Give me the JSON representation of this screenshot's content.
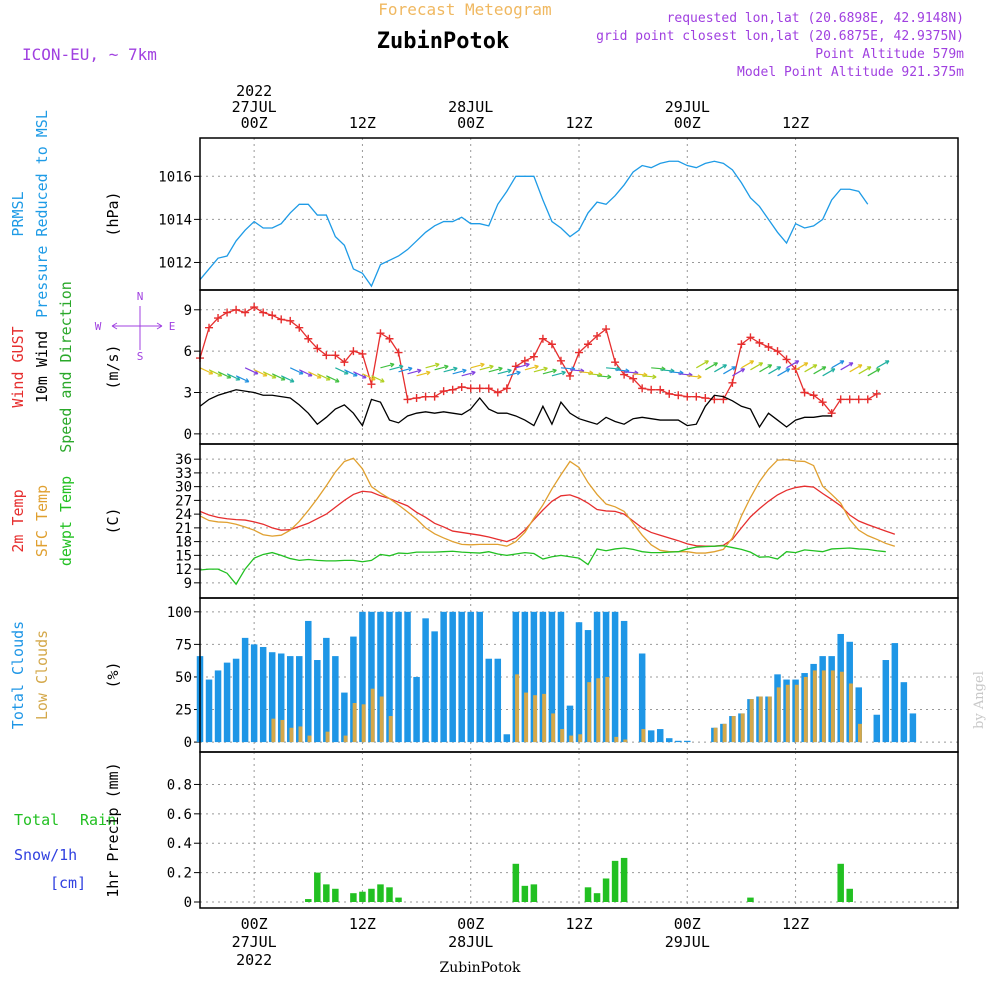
{
  "header": {
    "model": "ICON-EU, ~ 7km",
    "subtitle": "Forecast Meteogram",
    "location": "ZubinPotok",
    "requested": "requested lon,lat (20.6898E, 42.9148N)",
    "closest": "grid point closest lon,lat (20.6875E, 42.9375N)",
    "point_alt": "Point Altitude 579m",
    "model_alt": "Model Point Altitude 921.375m"
  },
  "footer": {
    "location": "ZubinPotok",
    "credit": "by Angel"
  },
  "colors": {
    "pressure": "#1e9be6",
    "gust": "#e62e2e",
    "wind": "#000000",
    "direction": "#2aa82a",
    "temp": "#e62e2e",
    "sfc": "#e0a030",
    "dewpt": "#22c022",
    "total_clouds": "#1e96e6",
    "low_clouds": "#d4a84a",
    "rain": "#22c022",
    "snow": "#3040e0",
    "purple": "#a040e0",
    "orange": "#f0b860"
  },
  "time_axis": {
    "top": [
      {
        "h": 0,
        "lines": [
          "2022",
          "27JUL",
          "00Z"
        ]
      },
      {
        "h": 12,
        "lines": [
          "12Z"
        ]
      },
      {
        "h": 24,
        "lines": [
          "28JUL",
          "00Z"
        ]
      },
      {
        "h": 36,
        "lines": [
          "12Z"
        ]
      },
      {
        "h": 48,
        "lines": [
          "29JUL",
          "00Z"
        ]
      },
      {
        "h": 60,
        "lines": [
          "12Z"
        ]
      }
    ],
    "bottom": [
      {
        "h": 0,
        "lines": [
          "00Z",
          "27JUL",
          "2022"
        ]
      },
      {
        "h": 12,
        "lines": [
          "12Z"
        ]
      },
      {
        "h": 24,
        "lines": [
          "00Z",
          "28JUL"
        ]
      },
      {
        "h": 36,
        "lines": [
          "12Z"
        ]
      },
      {
        "h": 48,
        "lines": [
          "00Z",
          "29JUL"
        ]
      },
      {
        "h": 60,
        "lines": [
          "12Z"
        ]
      }
    ]
  },
  "chart_data": [
    {
      "type": "line",
      "title": "",
      "ylabel": "(hPa)",
      "side_labels": [
        {
          "text": "PRMSL",
          "color": "pressure"
        },
        {
          "text": "Pressure Reduced to MSL",
          "color": "pressure"
        }
      ],
      "ylim": [
        1011,
        1017.5
      ],
      "yticks": [
        1012,
        1014,
        1016
      ],
      "x_start_hour": -6,
      "x_step_hours": 1,
      "series": [
        {
          "color": "pressure",
          "values": [
            1011.2,
            1011.7,
            1012.2,
            1012.3,
            1013.0,
            1013.5,
            1013.9,
            1013.6,
            1013.6,
            1013.8,
            1014.3,
            1014.7,
            1014.7,
            1014.2,
            1014.2,
            1013.2,
            1012.8,
            1011.7,
            1011.5,
            1010.9,
            1011.9,
            1012.1,
            1012.3,
            1012.6,
            1013.0,
            1013.4,
            1013.7,
            1013.9,
            1013.9,
            1014.1,
            1013.8,
            1013.8,
            1013.7,
            1014.7,
            1015.3,
            1016.0,
            1016.0,
            1016.0,
            1014.9,
            1013.9,
            1013.6,
            1013.2,
            1013.5,
            1014.3,
            1014.8,
            1014.7,
            1015.1,
            1015.6,
            1016.2,
            1016.5,
            1016.4,
            1016.6,
            1016.7,
            1016.7,
            1016.5,
            1016.4,
            1016.6,
            1016.7,
            1016.6,
            1016.3,
            1015.7,
            1015.0,
            1014.6,
            1014.0,
            1013.4,
            1012.9,
            1013.8,
            1013.6,
            1013.7,
            1014.0,
            1014.9,
            1015.4,
            1015.4,
            1015.3,
            1014.7
          ]
        }
      ]
    },
    {
      "type": "line",
      "title": "",
      "ylabel": "(m/s)",
      "side_labels": [
        {
          "text": "Wind GUST",
          "color": "gust"
        },
        {
          "text": "10m Wind",
          "color": "wind"
        },
        {
          "text": "Speed and Direction",
          "color": "direction"
        }
      ],
      "compass": {
        "n": "N",
        "s": "S",
        "w": "W",
        "e": "E"
      },
      "ylim": [
        -0.3,
        10
      ],
      "yticks": [
        0,
        3,
        6,
        9
      ],
      "x_start_hour": -6,
      "x_step_hours": 1,
      "series": [
        {
          "color": "gust",
          "marker": "plus",
          "values": [
            5.5,
            7.7,
            8.4,
            8.8,
            9.0,
            8.8,
            9.2,
            8.8,
            8.6,
            8.3,
            8.2,
            7.7,
            6.9,
            6.2,
            5.7,
            5.7,
            5.2,
            6.0,
            5.8,
            3.6,
            7.3,
            6.9,
            5.9,
            2.5,
            2.6,
            2.7,
            2.7,
            3.1,
            3.2,
            3.4,
            3.3,
            3.3,
            3.3,
            3.0,
            3.3,
            4.9,
            5.3,
            5.6,
            6.9,
            6.5,
            5.3,
            4.2,
            5.9,
            6.5,
            7.1,
            7.6,
            5.2,
            4.3,
            4.0,
            3.3,
            3.2,
            3.2,
            2.9,
            2.8,
            2.7,
            2.7,
            2.6,
            2.5,
            2.5,
            3.7,
            6.5,
            7.0,
            6.6,
            6.3,
            6.0,
            5.4,
            4.7,
            3.0,
            2.8,
            2.3,
            1.5,
            2.5,
            2.5,
            2.5,
            2.5,
            2.9
          ]
        },
        {
          "color": "wind",
          "values": [
            2.0,
            2.5,
            2.8,
            3.0,
            3.2,
            3.1,
            3.0,
            2.8,
            2.8,
            2.7,
            2.6,
            2.1,
            1.5,
            0.7,
            1.2,
            1.8,
            2.1,
            1.5,
            0.6,
            2.5,
            2.3,
            1.0,
            0.8,
            1.3,
            1.5,
            1.6,
            1.5,
            1.6,
            1.5,
            1.4,
            1.8,
            2.6,
            1.8,
            1.5,
            1.5,
            1.3,
            1.0,
            0.6,
            2.0,
            0.7,
            2.3,
            1.5,
            1.1,
            0.9,
            0.7,
            1.2,
            0.9,
            0.7,
            1.1,
            1.2,
            1.1,
            1.0,
            1.0,
            1.0,
            0.6,
            0.7,
            2.0,
            2.8,
            2.7,
            2.4,
            2.0,
            1.8,
            0.5,
            1.5,
            1.0,
            0.5,
            1.0,
            1.2,
            1.2,
            1.3,
            1.3
          ]
        }
      ],
      "direction_arrows": {
        "note": "10m wind direction arrows, colored by speed",
        "y_value": 4.5
      }
    },
    {
      "type": "line",
      "title": "",
      "ylabel": "(C)",
      "side_labels": [
        {
          "text": "2m Temp",
          "color": "temp"
        },
        {
          "text": "SFC Temp",
          "color": "sfc"
        },
        {
          "text": "dewpt Temp",
          "color": "dewpt"
        }
      ],
      "ylim": [
        7,
        38
      ],
      "yticks": [
        9,
        12,
        15,
        18,
        21,
        24,
        27,
        30,
        33,
        36
      ],
      "x_start_hour": -6,
      "x_step_hours": 1,
      "series": [
        {
          "color": "temp",
          "values": [
            24.6,
            23.8,
            23.3,
            23.0,
            22.8,
            22.7,
            22.3,
            21.8,
            21.0,
            20.5,
            20.6,
            21.3,
            22.0,
            23.0,
            24.0,
            25.5,
            27.0,
            28.3,
            29.0,
            28.8,
            28.0,
            27.4,
            26.6,
            25.8,
            24.4,
            23.3,
            22.0,
            21.2,
            20.3,
            20.0,
            19.7,
            19.4,
            19.0,
            18.5,
            18.0,
            18.8,
            20.5,
            22.8,
            24.9,
            26.8,
            28.0,
            28.2,
            27.5,
            26.4,
            25.0,
            24.7,
            24.6,
            24.0,
            22.5,
            21.0,
            20.0,
            19.4,
            18.8,
            18.2,
            17.5,
            17.1,
            17.0,
            17.0,
            17.2,
            18.5,
            21.0,
            23.4,
            25.2,
            26.8,
            28.2,
            29.2,
            29.8,
            30.1,
            29.9,
            28.5,
            27.2,
            25.8,
            23.8,
            22.5,
            21.7,
            21.0,
            20.3,
            19.6
          ]
        },
        {
          "color": "sfc",
          "values": [
            23.6,
            22.6,
            22.3,
            22.2,
            21.8,
            21.2,
            20.5,
            19.5,
            19.2,
            19.4,
            20.5,
            22.4,
            24.8,
            27.4,
            30.2,
            33.2,
            35.5,
            36.2,
            33.9,
            30.0,
            28.6,
            27.4,
            26.0,
            24.5,
            22.9,
            21.0,
            19.7,
            18.8,
            18.0,
            17.4,
            17.3,
            17.4,
            17.4,
            17.4,
            17.0,
            18.0,
            20.0,
            23.1,
            26.0,
            29.5,
            32.6,
            35.5,
            34.2,
            30.9,
            28.3,
            26.2,
            25.6,
            24.6,
            22.0,
            19.4,
            17.3,
            16.1,
            15.8,
            15.8,
            15.8,
            15.5,
            15.5,
            15.8,
            16.3,
            18.8,
            23.6,
            27.6,
            31.1,
            33.8,
            35.8,
            35.9,
            35.6,
            35.5,
            34.6,
            30.1,
            28.3,
            26.4,
            22.8,
            20.5,
            19.3,
            18.5,
            17.6,
            17.0
          ]
        },
        {
          "color": "dewpt",
          "values": [
            11.8,
            12.0,
            12.0,
            11.1,
            8.7,
            12.0,
            14.4,
            15.2,
            15.6,
            15.0,
            14.3,
            13.9,
            14.1,
            13.9,
            13.8,
            13.8,
            13.9,
            13.9,
            13.6,
            13.9,
            15.2,
            14.9,
            15.5,
            15.4,
            15.7,
            15.7,
            15.7,
            15.8,
            15.9,
            15.7,
            15.6,
            15.5,
            15.8,
            15.3,
            15.0,
            15.3,
            15.6,
            15.4,
            14.2,
            14.7,
            15.0,
            14.7,
            14.4,
            13.0,
            16.4,
            16.0,
            16.4,
            16.6,
            16.3,
            15.8,
            15.6,
            15.6,
            15.7,
            15.8,
            16.4,
            16.8,
            16.9,
            17.0,
            17.1,
            16.7,
            16.3,
            15.7,
            14.6,
            14.7,
            14.2,
            15.8,
            15.6,
            16.2,
            16.0,
            15.8,
            16.4,
            16.5,
            16.6,
            16.4,
            16.3,
            16.0,
            15.8
          ]
        }
      ]
    },
    {
      "type": "bar",
      "title": "",
      "ylabel": "(%)",
      "side_labels": [
        {
          "text": "Total Clouds",
          "color": "total_clouds"
        },
        {
          "text": "Low Clouds",
          "color": "low_clouds"
        }
      ],
      "ylim": [
        -3,
        106
      ],
      "yticks": [
        0,
        25,
        50,
        75,
        100
      ],
      "x_start_hour": -6,
      "x_step_hours": 1,
      "series": [
        {
          "color": "total_clouds",
          "values": [
            66,
            48,
            55,
            61,
            64,
            80,
            75,
            73,
            69,
            68,
            66,
            66,
            93,
            63,
            80,
            66,
            38,
            81,
            100,
            100,
            100,
            100,
            100,
            100,
            50,
            95,
            85,
            100,
            100,
            100,
            100,
            100,
            64,
            64,
            6,
            100,
            100,
            100,
            100,
            100,
            100,
            28,
            92,
            86,
            100,
            100,
            100,
            93,
            0,
            68,
            9,
            10,
            3,
            1,
            1,
            0,
            0,
            11,
            14,
            20,
            22,
            33,
            35,
            35,
            52,
            48,
            48,
            53,
            60,
            66,
            66,
            83,
            77,
            42,
            0,
            21,
            63,
            76,
            46,
            22
          ]
        },
        {
          "color": "low_clouds",
          "values": [
            0,
            0,
            0,
            0,
            0,
            0,
            0,
            0,
            18,
            17,
            11,
            12,
            5,
            0,
            8,
            0,
            5,
            30,
            29,
            41,
            35,
            20,
            0,
            0,
            0,
            0,
            0,
            0,
            0,
            0,
            0,
            0,
            0,
            0,
            0,
            52,
            38,
            36,
            37,
            22,
            10,
            5,
            6,
            46,
            49,
            50,
            4,
            2,
            0,
            10,
            0,
            0,
            0,
            0,
            0,
            0,
            0,
            11,
            14,
            20,
            22,
            33,
            35,
            35,
            42,
            44,
            44,
            50,
            55,
            55,
            55,
            54,
            45,
            14,
            0,
            0,
            0,
            0,
            0,
            0
          ]
        }
      ]
    },
    {
      "type": "bar",
      "title": "",
      "ylabel": "1hr Precip (mm)",
      "side_labels": [
        {
          "text": "Total",
          "color": "rain"
        },
        {
          "text": "Rain",
          "color": "rain"
        },
        {
          "text": "Snow/1h",
          "color": "snow"
        },
        {
          "text": "[cm]",
          "color": "snow"
        }
      ],
      "ylim": [
        0,
        0.98
      ],
      "yticks": [
        0,
        0.2,
        0.4,
        0.6,
        0.8
      ],
      "x_start_hour": -6,
      "x_step_hours": 1,
      "series": [
        {
          "color": "rain",
          "values": [
            0,
            0,
            0,
            0,
            0,
            0,
            0,
            0,
            0,
            0,
            0,
            0,
            0.02,
            0.2,
            0.12,
            0.09,
            0,
            0.06,
            0.07,
            0.09,
            0.12,
            0.1,
            0.03,
            0,
            0,
            0,
            0,
            0,
            0,
            0,
            0,
            0,
            0,
            0,
            0,
            0.26,
            0.11,
            0.12,
            0,
            0,
            0,
            0,
            0,
            0.1,
            0.06,
            0.16,
            0.28,
            0.3,
            0,
            0,
            0,
            0,
            0,
            0,
            0,
            0,
            0,
            0,
            0,
            0,
            0,
            0.03,
            0,
            0,
            0,
            0,
            0,
            0,
            0,
            0,
            0,
            0.26,
            0.09,
            0,
            0,
            0,
            0,
            0,
            0,
            0
          ]
        }
      ]
    }
  ]
}
